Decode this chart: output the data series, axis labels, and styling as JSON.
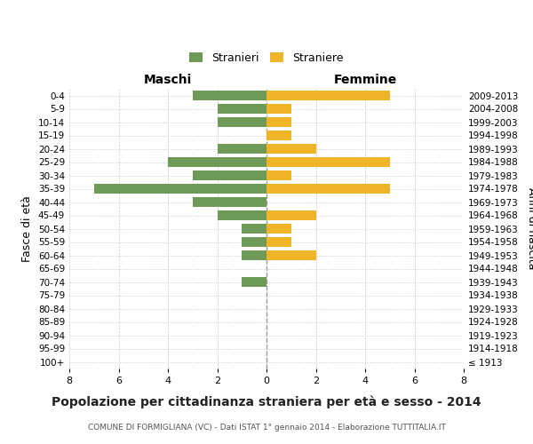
{
  "age_groups": [
    "100+",
    "95-99",
    "90-94",
    "85-89",
    "80-84",
    "75-79",
    "70-74",
    "65-69",
    "60-64",
    "55-59",
    "50-54",
    "45-49",
    "40-44",
    "35-39",
    "30-34",
    "25-29",
    "20-24",
    "15-19",
    "10-14",
    "5-9",
    "0-4"
  ],
  "birth_years": [
    "≤ 1913",
    "1914-1918",
    "1919-1923",
    "1924-1928",
    "1929-1933",
    "1934-1938",
    "1939-1943",
    "1944-1948",
    "1949-1953",
    "1954-1958",
    "1959-1963",
    "1964-1968",
    "1969-1973",
    "1974-1978",
    "1979-1983",
    "1984-1988",
    "1989-1993",
    "1994-1998",
    "1999-2003",
    "2004-2008",
    "2009-2013"
  ],
  "males": [
    0,
    0,
    0,
    0,
    0,
    0,
    1,
    0,
    1,
    1,
    1,
    2,
    3,
    7,
    3,
    4,
    2,
    0,
    2,
    2,
    3
  ],
  "females": [
    0,
    0,
    0,
    0,
    0,
    0,
    0,
    0,
    2,
    1,
    1,
    2,
    0,
    5,
    1,
    5,
    2,
    1,
    1,
    1,
    5
  ],
  "male_color": "#6d9b57",
  "female_color": "#f0b429",
  "background_color": "#ffffff",
  "grid_color": "#cccccc",
  "center_line_color": "#999999",
  "title": "Popolazione per cittadinanza straniera per età e sesso - 2014",
  "subtitle": "COMUNE DI FORMIGLIANA (VC) - Dati ISTAT 1° gennaio 2014 - Elaborazione TUTTITALIA.IT",
  "left_label": "Maschi",
  "right_label": "Femmine",
  "y_left_label": "Fasce di età",
  "y_right_label": "Anni di nascita",
  "legend_male": "Stranieri",
  "legend_female": "Straniere",
  "xlim": 8,
  "bar_height": 0.72
}
